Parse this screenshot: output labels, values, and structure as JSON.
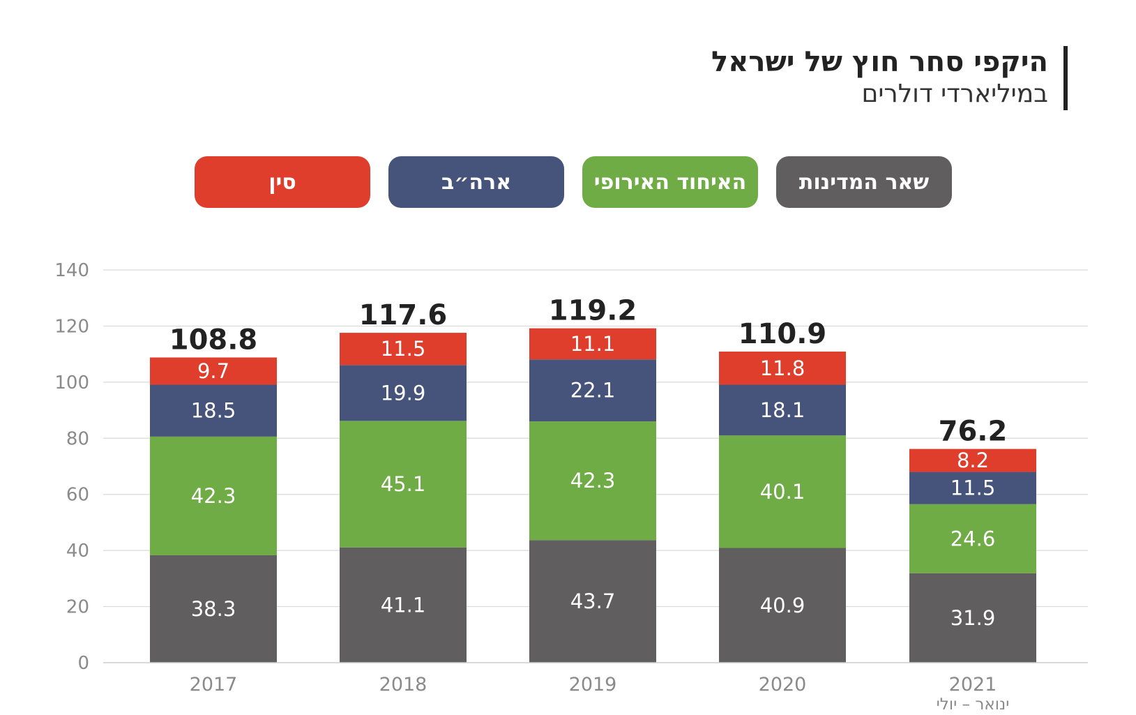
{
  "header": {
    "title": "היקפי סחר חוץ של ישראל",
    "subtitle": "במיליארדי דולרים"
  },
  "colors": {
    "other": "#605e5e",
    "eu": "#6fac46",
    "usa": "#46537a",
    "china": "#e03e2d",
    "grid": "#d9d9d9",
    "tick": "#8a8a8a"
  },
  "chart_data": {
    "type": "bar",
    "stacked": true,
    "title": "היקפי סחר חוץ של ישראל",
    "subtitle": "במיליארדי דולרים",
    "categories": [
      "2017",
      "2018",
      "2019",
      "2020",
      "2021"
    ],
    "category_notes": [
      "",
      "",
      "",
      "",
      "ינואר – יולי"
    ],
    "series": [
      {
        "name": "שאר המדינות",
        "key": "other",
        "values": [
          38.3,
          41.1,
          43.7,
          40.9,
          31.9
        ]
      },
      {
        "name": "האיחוד האירופי",
        "key": "eu",
        "values": [
          42.3,
          45.1,
          42.3,
          40.1,
          24.6
        ]
      },
      {
        "name": "ארה״ב",
        "key": "usa",
        "values": [
          18.5,
          19.9,
          22.1,
          18.1,
          11.5
        ]
      },
      {
        "name": "סין",
        "key": "china",
        "values": [
          9.7,
          11.5,
          11.1,
          11.8,
          8.2
        ]
      }
    ],
    "totals": [
      108.8,
      117.6,
      119.2,
      110.9,
      76.2
    ],
    "ylim": [
      0,
      140
    ],
    "yticks": [
      0,
      20,
      40,
      60,
      80,
      100,
      120,
      140
    ],
    "grid": true,
    "legend_position": "top"
  }
}
